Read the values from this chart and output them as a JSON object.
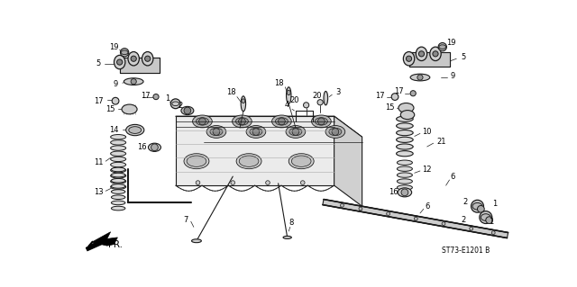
{
  "diagram_code": "ST73-E1201 B",
  "background_color": "#ffffff",
  "line_color": "#1a1a1a",
  "fig_width": 6.4,
  "fig_height": 3.19,
  "dpi": 100,
  "fs_label": 6.0,
  "fs_code": 5.5
}
